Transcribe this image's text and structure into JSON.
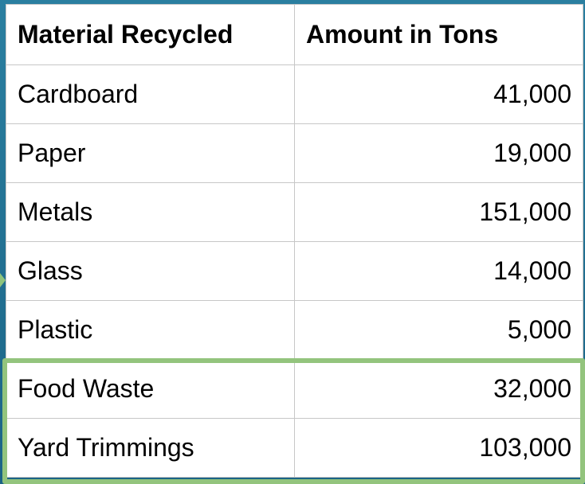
{
  "chart_data": {
    "type": "table",
    "columns": [
      "Material Recycled",
      "Amount in Tons"
    ],
    "rows": [
      {
        "material": "Cardboard",
        "amount": "41,000"
      },
      {
        "material": "Paper",
        "amount": "19,000"
      },
      {
        "material": "Metals",
        "amount": "151,000"
      },
      {
        "material": "Glass",
        "amount": "14,000"
      },
      {
        "material": "Plastic",
        "amount": "5,000"
      },
      {
        "material": "Food Waste",
        "amount": "32,000"
      },
      {
        "material": "Yard Trimmings",
        "amount": "103,000"
      }
    ],
    "values": [
      41000,
      19000,
      151000,
      14000,
      5000,
      32000,
      103000
    ],
    "highlighted_rows": [
      "Food Waste",
      "Yard Trimmings"
    ]
  },
  "colors": {
    "background": "#1f6f8f",
    "highlight_border": "#93c47d",
    "grid_lines": "#c7c7c7"
  }
}
